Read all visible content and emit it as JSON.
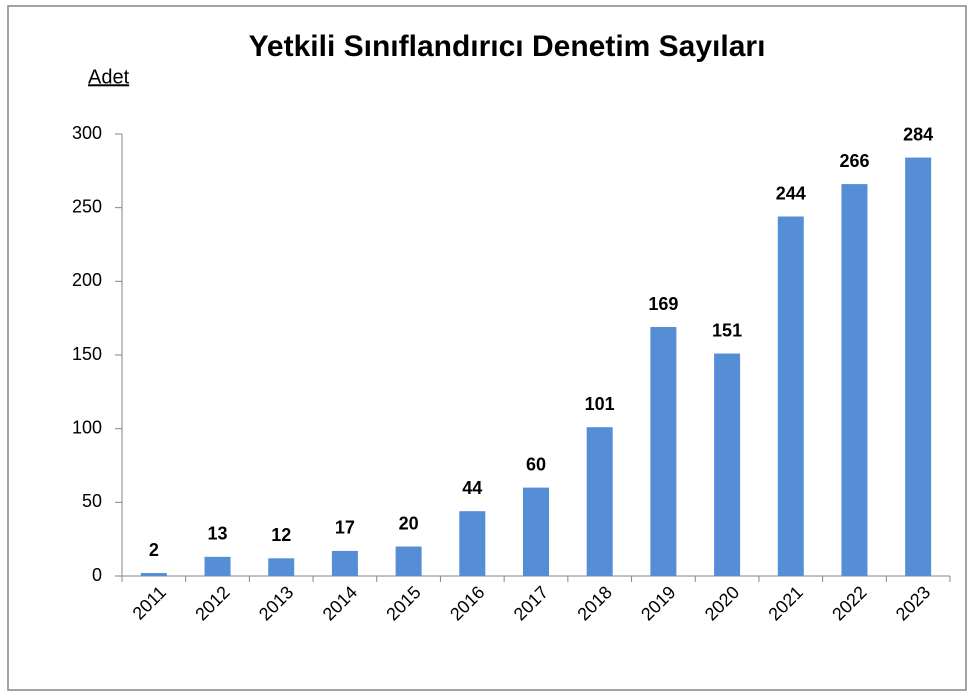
{
  "chart_data": {
    "type": "bar",
    "title": "Yetkili Sınıflandırıcı Denetim Sayıları",
    "y_label": "Adet",
    "categories": [
      "2011",
      "2012",
      "2013",
      "2014",
      "2015",
      "2016",
      "2017",
      "2018",
      "2019",
      "2020",
      "2021",
      "2022",
      "2023"
    ],
    "values": [
      2,
      13,
      12,
      17,
      20,
      44,
      60,
      101,
      169,
      151,
      244,
      266,
      284
    ],
    "color": "#558ed5",
    "ylim": [
      0,
      300
    ],
    "yticks": [
      0,
      50,
      100,
      150,
      200,
      250,
      300
    ],
    "grid": false
  }
}
